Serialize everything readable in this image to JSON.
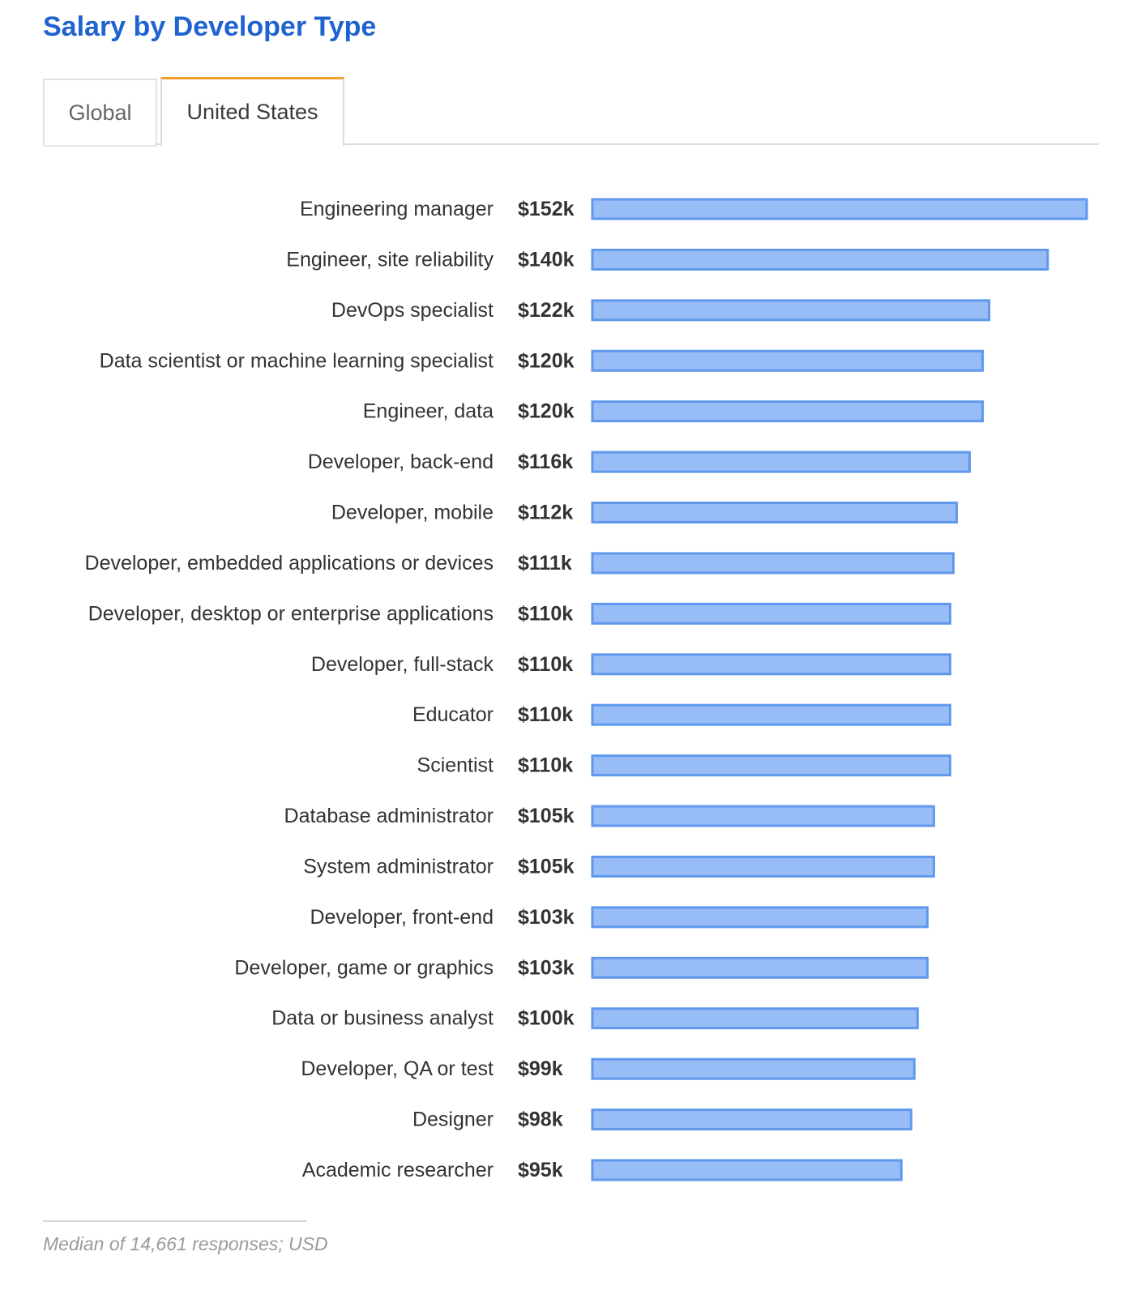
{
  "header": {
    "title": "Salary by Developer Type"
  },
  "tabs": [
    {
      "label": "Global",
      "active": false
    },
    {
      "label": "United States",
      "active": true
    }
  ],
  "colors": {
    "title": "#1f63d1",
    "bar_fill": "#98bdf6",
    "bar_stroke": "#5f98ec",
    "tab_active_accent": "#f0a030"
  },
  "chart_data": {
    "type": "bar",
    "orientation": "horizontal",
    "title": "Salary by Developer Type",
    "unit": "USD (thousands)",
    "categories": [
      "Engineering manager",
      "Engineer, site reliability",
      "DevOps specialist",
      "Data scientist or machine learning specialist",
      "Engineer, data",
      "Developer, back-end",
      "Developer, mobile",
      "Developer, embedded applications or devices",
      "Developer, desktop or enterprise applications",
      "Developer, full-stack",
      "Educator",
      "Scientist",
      "Database administrator",
      "System administrator",
      "Developer, front-end",
      "Developer, game or graphics",
      "Data or business analyst",
      "Developer, QA or test",
      "Designer",
      "Academic researcher"
    ],
    "values": [
      152,
      140,
      122,
      120,
      120,
      116,
      112,
      111,
      110,
      110,
      110,
      110,
      105,
      105,
      103,
      103,
      100,
      99,
      98,
      95
    ],
    "value_labels": [
      "$152k",
      "$140k",
      "$122k",
      "$120k",
      "$120k",
      "$116k",
      "$112k",
      "$111k",
      "$110k",
      "$110k",
      "$110k",
      "$110k",
      "$105k",
      "$105k",
      "$103k",
      "$103k",
      "$100k",
      "$99k",
      "$98k",
      "$95k"
    ],
    "xlim": [
      0,
      152
    ]
  },
  "footnote": {
    "text": "Median of 14,661 responses; USD"
  }
}
